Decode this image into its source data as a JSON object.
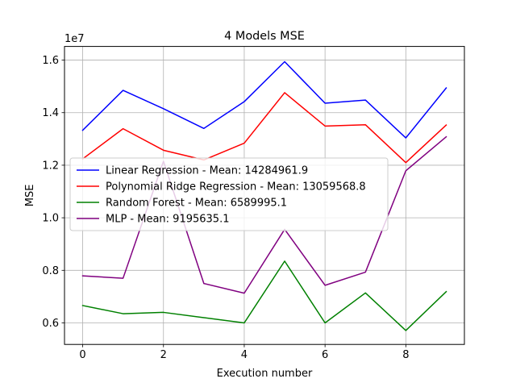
{
  "chart_data": {
    "type": "line",
    "title": "4 Models MSE",
    "xlabel": "Execution number",
    "ylabel": "MSE",
    "offset_text": "1e7",
    "x": [
      0,
      1,
      2,
      3,
      4,
      5,
      6,
      7,
      8,
      9
    ],
    "xticks": [
      0,
      2,
      4,
      6,
      8
    ],
    "xlim": [
      -0.45,
      9.45
    ],
    "yticks": [
      0.6,
      0.8,
      1.0,
      1.2,
      1.4,
      1.6
    ],
    "ytick_labels": [
      "0.6",
      "0.8",
      "1.0",
      "1.2",
      "1.4",
      "1.6"
    ],
    "ylim": [
      0.518,
      1.652
    ],
    "grid": true,
    "legend_position": "center-left",
    "series": [
      {
        "name": "Linear Regression - Mean: 14284961.9",
        "color": "#0000ff",
        "values": [
          1.333,
          1.485,
          1.415,
          1.34,
          1.442,
          1.594,
          1.436,
          1.448,
          1.304,
          1.494
        ]
      },
      {
        "name": "Polynomial Ridge Regression - Mean: 13059568.8",
        "color": "#ff0000",
        "values": [
          1.224,
          1.339,
          1.257,
          1.22,
          1.284,
          1.476,
          1.349,
          1.354,
          1.21,
          1.353
        ]
      },
      {
        "name": "Random Forest - Mean: 6589995.1",
        "color": "#008000",
        "values": [
          0.666,
          0.635,
          0.64,
          0.62,
          0.6,
          0.835,
          0.6,
          0.714,
          0.571,
          0.719
        ]
      },
      {
        "name": "MLP - Mean: 9195635.1",
        "color": "#800080",
        "values": [
          0.779,
          0.77,
          1.215,
          0.75,
          0.713,
          0.956,
          0.743,
          0.793,
          1.179,
          1.308
        ]
      }
    ]
  }
}
